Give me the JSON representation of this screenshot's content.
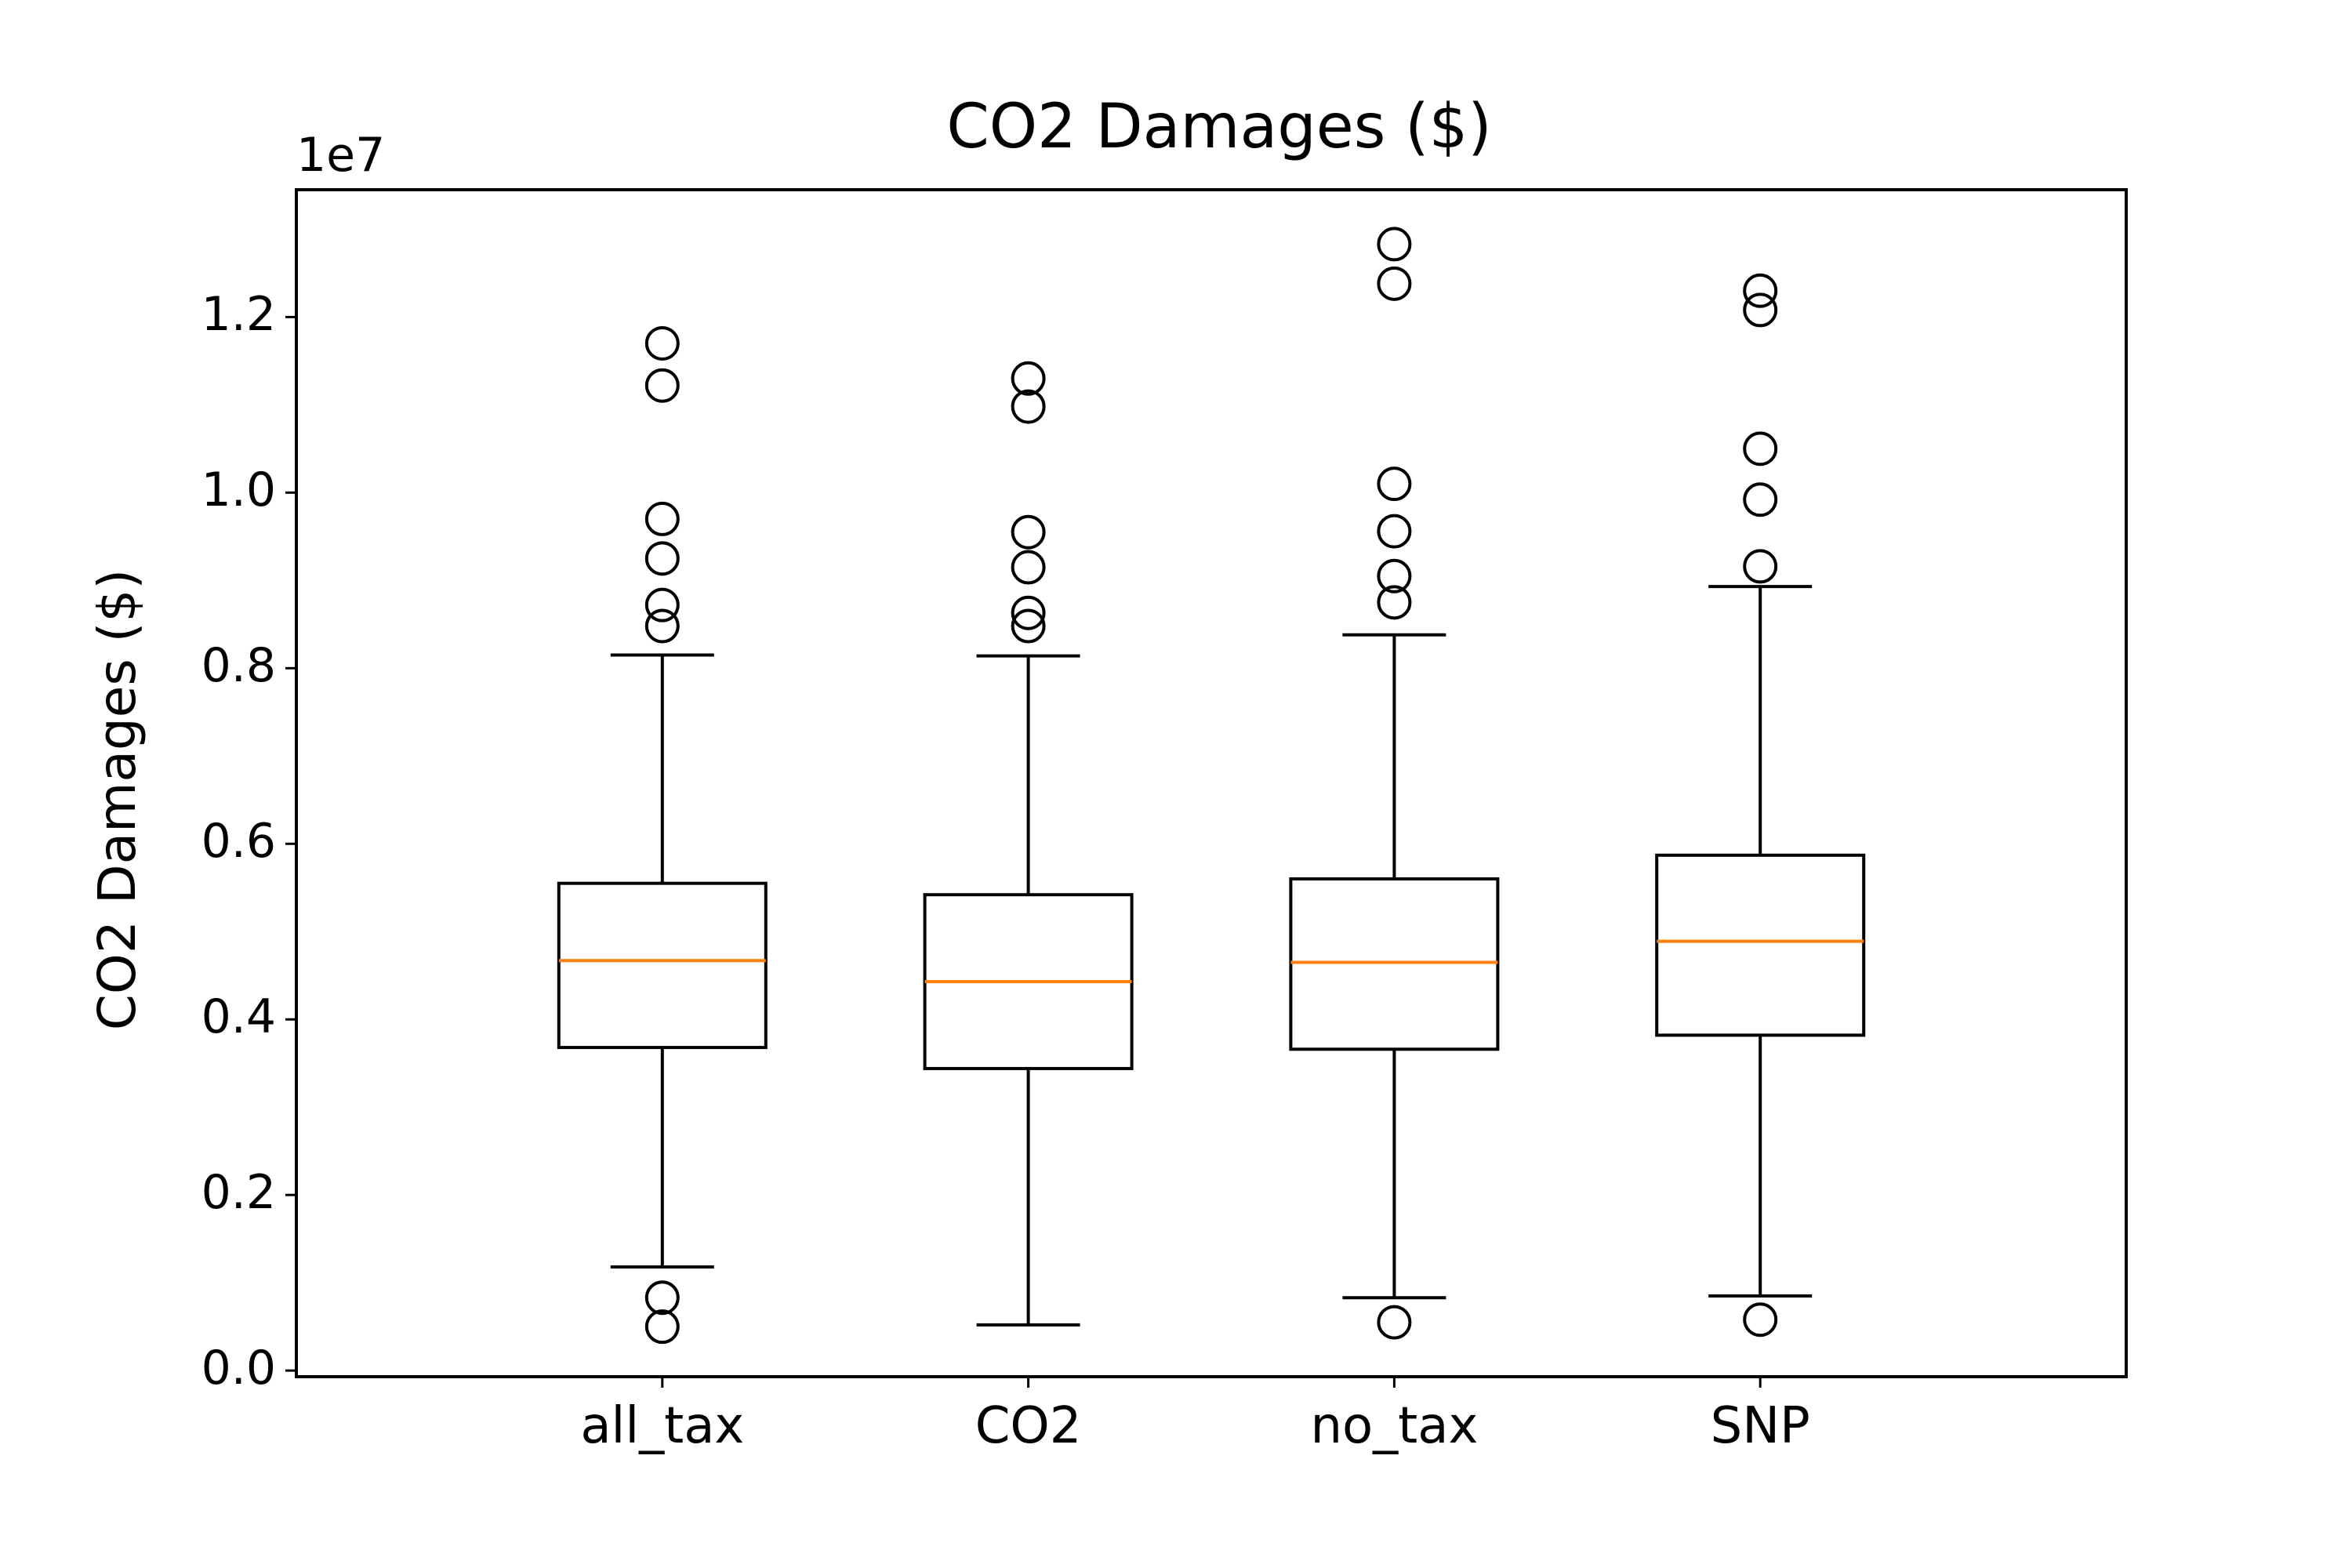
{
  "chart_data": {
    "type": "box",
    "title": "CO2 Damages ($)",
    "ylabel": "CO2 Damages ($)",
    "xlabel": "",
    "offset_text": "1e7",
    "scale": 10000000,
    "ylim": [
      -0.007,
      1.345
    ],
    "yticks": [
      0.0,
      0.2,
      0.4,
      0.6,
      0.8,
      1.0,
      1.2
    ],
    "ytick_labels": [
      "0.0",
      "0.2",
      "0.4",
      "0.6",
      "0.8",
      "1.0",
      "1.2"
    ],
    "grid": false,
    "colors": {
      "median": "#ff7f0e",
      "box": "#000000"
    },
    "categories": [
      "all_tax",
      "CO2",
      "no_tax",
      "SNP"
    ],
    "boxes": [
      {
        "label": "all_tax",
        "whisker_low": 0.118,
        "q1": 0.368,
        "median": 0.467,
        "q3": 0.555,
        "whisker_high": 0.815,
        "outliers": [
          0.05,
          0.083,
          0.848,
          0.872,
          0.925,
          0.97,
          1.122,
          1.17
        ]
      },
      {
        "label": "CO2",
        "whisker_low": 0.052,
        "q1": 0.344,
        "median": 0.443,
        "q3": 0.542,
        "whisker_high": 0.814,
        "outliers": [
          0.848,
          0.863,
          0.915,
          0.955,
          1.098,
          1.13
        ]
      },
      {
        "label": "no_tax",
        "whisker_low": 0.083,
        "q1": 0.366,
        "median": 0.465,
        "q3": 0.56,
        "whisker_high": 0.838,
        "outliers": [
          0.055,
          0.875,
          0.905,
          0.956,
          1.01,
          1.238,
          1.283
        ]
      },
      {
        "label": "SNP",
        "whisker_low": 0.085,
        "q1": 0.382,
        "median": 0.489,
        "q3": 0.587,
        "whisker_high": 0.893,
        "outliers": [
          0.058,
          0.916,
          0.992,
          1.05,
          1.208,
          1.23
        ]
      }
    ]
  }
}
